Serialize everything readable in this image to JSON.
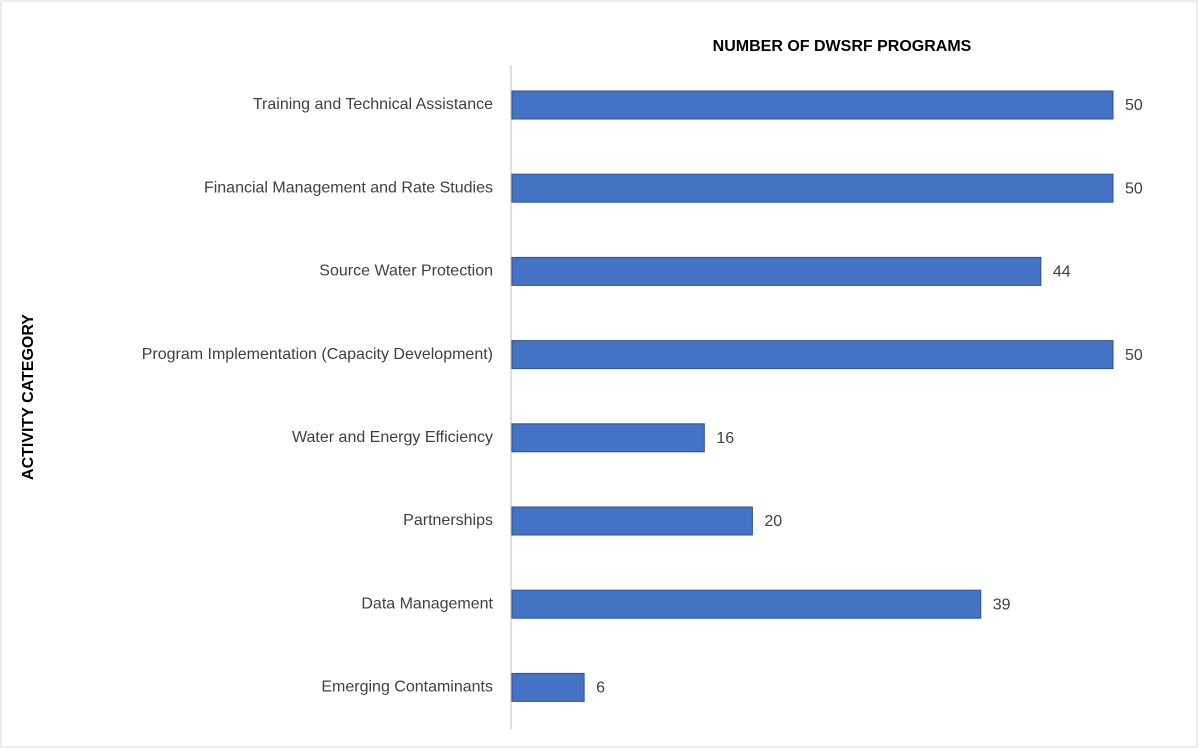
{
  "chart_data": {
    "type": "bar",
    "orientation": "horizontal",
    "x_label": "NUMBER OF DWSRF PROGRAMS",
    "y_label": "ACTIVITY CATEGORY",
    "categories": [
      "Training and Technical Assistance",
      "Financial Management and Rate Studies",
      "Source Water Protection",
      "Program Implementation (Capacity Development)",
      "Water and Energy Efficiency",
      "Partnerships",
      "Data Management",
      "Emerging Contaminants"
    ],
    "values": [
      50,
      50,
      44,
      50,
      16,
      20,
      39,
      6
    ],
    "color": "#4472c4",
    "xlim": [
      0,
      50
    ],
    "grid": false
  }
}
